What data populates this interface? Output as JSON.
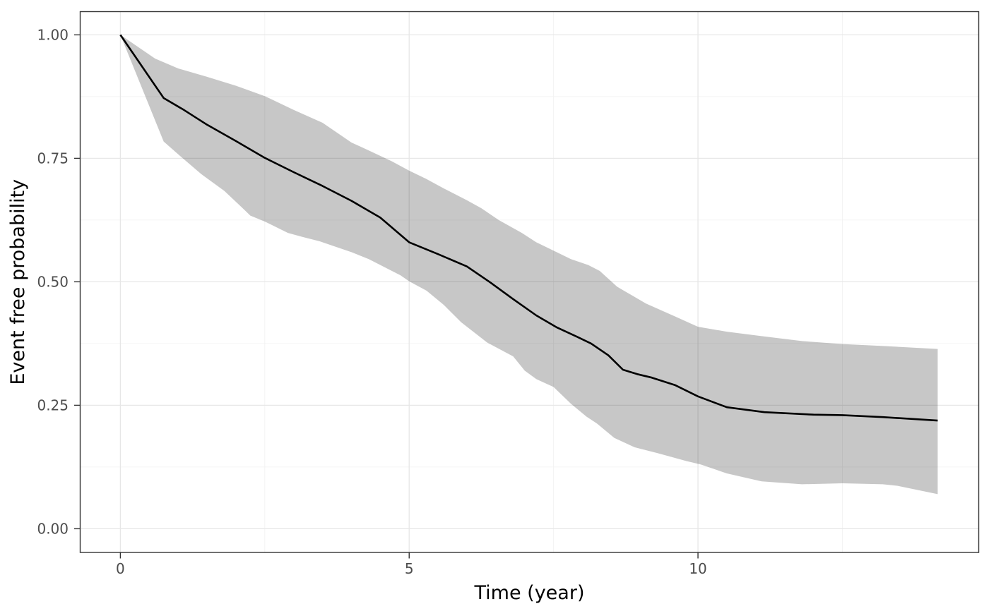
{
  "chart_data": {
    "type": "line",
    "title": "",
    "xlabel": "Time (year)",
    "ylabel": "Event free probability",
    "legend": "none",
    "grid": true,
    "x_axis": {
      "major_ticks": [
        0,
        5,
        10
      ],
      "major_labels": [
        "0",
        "5",
        "10"
      ],
      "minor_ticks": [
        2.5,
        7.5,
        12.5
      ],
      "lim": [
        -0.696,
        14.861
      ]
    },
    "y_axis": {
      "major_ticks": [
        0,
        0.25,
        0.5,
        0.75,
        1
      ],
      "major_labels": [
        "0.00",
        "0.25",
        "0.50",
        "0.75",
        "1.00"
      ],
      "minor_ticks": [
        0.125,
        0.375,
        0.625,
        0.875
      ],
      "lim": [
        -0.048,
        1.047
      ]
    },
    "series": [
      {
        "name": "estimate",
        "role": "line",
        "x": [
          0,
          0.75,
          1.1,
          1.5,
          2,
          2.5,
          3,
          3.5,
          4,
          4.5,
          5,
          5.5,
          6,
          6.4,
          6.8,
          7.2,
          7.55,
          7.9,
          8.15,
          8.45,
          8.7,
          8.95,
          9.2,
          9.6,
          10,
          10.5,
          11.15,
          12,
          12.5,
          13.2,
          14.15
        ],
        "y": [
          1,
          0.872,
          0.848,
          0.818,
          0.785,
          0.751,
          0.722,
          0.694,
          0.664,
          0.63,
          0.58,
          0.556,
          0.531,
          0.499,
          0.465,
          0.432,
          0.408,
          0.389,
          0.375,
          0.351,
          0.322,
          0.313,
          0.306,
          0.291,
          0.268,
          0.246,
          0.236,
          0.231,
          0.23,
          0.226,
          0.219
        ]
      },
      {
        "name": "ci_upper",
        "role": "band-upper",
        "x": [
          0,
          0.6,
          1,
          1.5,
          2,
          2.5,
          3,
          3.5,
          4,
          4.3,
          4.7,
          5,
          5.3,
          5.6,
          6,
          6.25,
          6.55,
          6.95,
          7.2,
          7.5,
          7.8,
          8.1,
          8.3,
          8.6,
          9.1,
          9.6,
          10,
          10.5,
          11.1,
          11.8,
          12.5,
          13.2,
          14.15
        ],
        "y": [
          1,
          0.952,
          0.932,
          0.915,
          0.897,
          0.876,
          0.848,
          0.822,
          0.782,
          0.766,
          0.744,
          0.725,
          0.708,
          0.689,
          0.665,
          0.649,
          0.625,
          0.599,
          0.58,
          0.563,
          0.546,
          0.534,
          0.522,
          0.49,
          0.456,
          0.43,
          0.409,
          0.399,
          0.39,
          0.38,
          0.374,
          0.37,
          0.364
        ]
      },
      {
        "name": "ci_lower",
        "role": "band-lower",
        "x": [
          0,
          0.75,
          1.05,
          1.4,
          1.8,
          2.1,
          2.25,
          2.5,
          2.9,
          3.15,
          3.45,
          3.7,
          4,
          4.3,
          4.85,
          5,
          5.3,
          5.6,
          5.9,
          6.35,
          6.8,
          7,
          7.2,
          7.5,
          7.8,
          8.07,
          8.25,
          8.55,
          8.9,
          9.3,
          9.8,
          10.05,
          10.5,
          11.1,
          11.8,
          12.5,
          13.2,
          13.45,
          14.15
        ],
        "y": [
          1,
          0.784,
          0.753,
          0.718,
          0.684,
          0.651,
          0.634,
          0.622,
          0.599,
          0.591,
          0.582,
          0.572,
          0.56,
          0.546,
          0.513,
          0.501,
          0.482,
          0.453,
          0.418,
          0.377,
          0.349,
          0.32,
          0.303,
          0.287,
          0.253,
          0.227,
          0.213,
          0.184,
          0.165,
          0.153,
          0.137,
          0.13,
          0.112,
          0.096,
          0.09,
          0.092,
          0.09,
          0.087,
          0.07
        ]
      }
    ],
    "style": {
      "line_color": "#000000",
      "band_color": "#000000",
      "band_opacity": 0.22,
      "panel_background": "#ffffff",
      "panel_border_color": "#333333",
      "grid_major_color": "#e7e7e7",
      "grid_minor_color": "#f1f1f1",
      "tick_mark_color": "#333333",
      "tick_label_color": "#4d4d4d",
      "axis_title_color": "#000000"
    }
  }
}
